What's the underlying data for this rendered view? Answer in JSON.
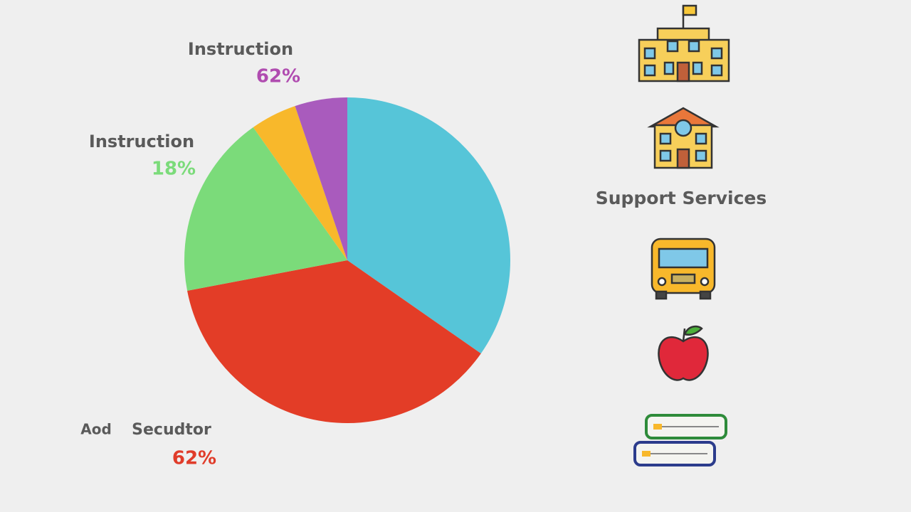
{
  "chart_data": {
    "type": "pie",
    "categories": [
      null,
      null,
      null,
      null,
      null
    ],
    "values": [
      34.7,
      37.3,
      18.2,
      4.6,
      5.2
    ],
    "colors": [
      "#56c5d8",
      "#e33d27",
      "#7bdb7a",
      "#f8b82b",
      "#a95bbd"
    ],
    "annotations": [
      {
        "text": "Instruction",
        "value": "62%",
        "color": "#b04cb0"
      },
      {
        "text": "Instruction",
        "value": "18%",
        "color": "#7bdb7a"
      },
      {
        "text": "Aod",
        "text2": "Secudtor",
        "value": "62%",
        "color": "#e03c2a"
      }
    ],
    "side_label": "Support Services"
  }
}
